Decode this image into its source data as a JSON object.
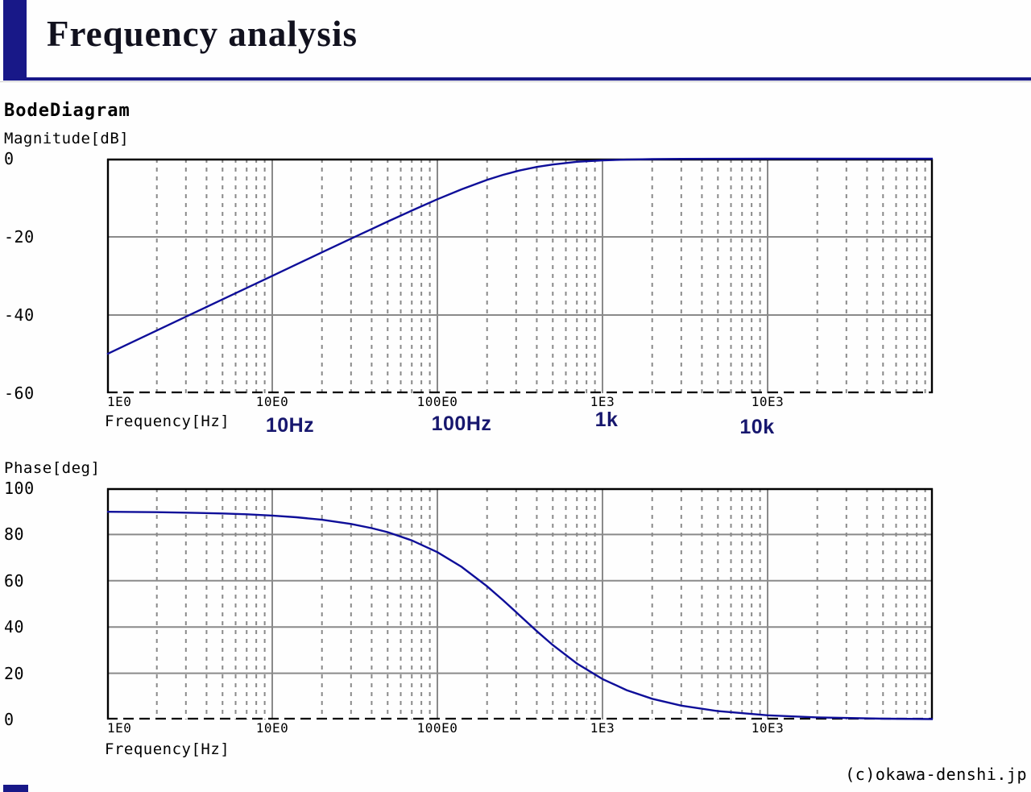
{
  "header": {
    "title": "Frequency analysis",
    "accent_color": "#181888"
  },
  "section": {
    "heading": "BodeDiagram",
    "credit": "(c)okawa-denshi.jp"
  },
  "chart_data": [
    {
      "type": "line",
      "id": "magnitude",
      "ylabel": "Magnitude[dB]",
      "xlabel": "Frequency[Hz]",
      "x_scale": "log",
      "xlim": [
        1,
        100000
      ],
      "ylim": [
        -60,
        0
      ],
      "grid": true,
      "legend": false,
      "x_ticks": [
        {
          "value": 1,
          "label": "1E0"
        },
        {
          "value": 10,
          "label": "10E0"
        },
        {
          "value": 100,
          "label": "100E0"
        },
        {
          "value": 1000,
          "label": "1E3"
        },
        {
          "value": 10000,
          "label": "10E3"
        }
      ],
      "y_ticks": [
        {
          "value": 0,
          "label": "0"
        },
        {
          "value": -20,
          "label": "-20"
        },
        {
          "value": -40,
          "label": "-40"
        },
        {
          "value": -60,
          "label": "-60"
        }
      ],
      "series": [
        {
          "name": "magnitude",
          "color": "#0e0e99",
          "x": [
            1,
            1.4,
            2,
            3,
            4,
            5,
            7,
            10,
            14,
            20,
            30,
            40,
            50,
            70,
            100,
            140,
            200,
            250,
            300,
            315,
            400,
            500,
            700,
            1000,
            1400,
            2000,
            3000,
            5000,
            10000,
            30000,
            100000
          ],
          "y": [
            -49.97,
            -47.05,
            -43.95,
            -40.43,
            -37.93,
            -36.0,
            -33.08,
            -29.97,
            -27.05,
            -23.96,
            -20.46,
            -17.99,
            -16.08,
            -13.27,
            -10.38,
            -7.83,
            -5.41,
            -4.13,
            -3.23,
            -3.01,
            -2.1,
            -1.48,
            -0.79,
            -0.41,
            -0.22,
            -0.11,
            -0.05,
            -0.02,
            -0.01,
            0,
            0
          ]
        }
      ],
      "annotations": [
        {
          "label": "10Hz",
          "x": 360,
          "y": 514
        },
        {
          "label": "100Hz",
          "x": 573,
          "y": 512
        },
        {
          "label": "1k",
          "x": 753,
          "y": 507
        },
        {
          "label": "10k",
          "x": 940,
          "y": 516
        }
      ]
    },
    {
      "type": "line",
      "id": "phase",
      "ylabel": "Phase[deg]",
      "xlabel": "Frequency[Hz]",
      "x_scale": "log",
      "xlim": [
        1,
        100000
      ],
      "ylim": [
        0,
        100
      ],
      "grid": true,
      "legend": false,
      "x_ticks": [
        {
          "value": 1,
          "label": "1E0"
        },
        {
          "value": 10,
          "label": "10E0"
        },
        {
          "value": 100,
          "label": "100E0"
        },
        {
          "value": 1000,
          "label": "1E3"
        },
        {
          "value": 10000,
          "label": "10E3"
        }
      ],
      "y_ticks": [
        {
          "value": 100,
          "label": "100"
        },
        {
          "value": 80,
          "label": "80"
        },
        {
          "value": 60,
          "label": "60"
        },
        {
          "value": 40,
          "label": "40"
        },
        {
          "value": 20,
          "label": "20"
        },
        {
          "value": 0,
          "label": "0"
        }
      ],
      "series": [
        {
          "name": "phase",
          "color": "#0e0e99",
          "x": [
            1,
            2,
            3,
            5,
            7,
            10,
            14,
            20,
            30,
            40,
            50,
            70,
            100,
            140,
            200,
            250,
            300,
            315,
            400,
            500,
            700,
            1000,
            1400,
            2000,
            3000,
            5000,
            10000,
            20000,
            50000,
            100000
          ],
          "y": [
            89.82,
            89.64,
            89.45,
            89.09,
            88.73,
            88.18,
            87.46,
            86.37,
            84.56,
            82.76,
            81.0,
            77.45,
            72.38,
            66.04,
            57.59,
            51.57,
            46.4,
            45.0,
            38.22,
            32.21,
            24.23,
            17.49,
            12.69,
            8.95,
            5.99,
            3.61,
            1.8,
            0.9,
            0.36,
            0.18
          ]
        }
      ],
      "annotations": []
    }
  ],
  "style": {
    "curve_color": "#0e0e99",
    "grid_color": "#8a8a8a",
    "border_color": "#000000"
  }
}
